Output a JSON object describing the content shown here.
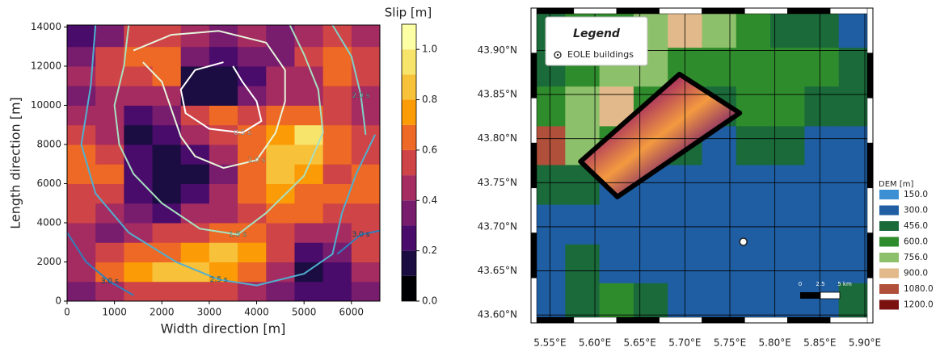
{
  "chart_data": [
    {
      "type": "contour",
      "xlabel": "Width direction [m]",
      "ylabel": "Length direction [m]",
      "xlim": [
        0,
        6600
      ],
      "ylim": [
        0,
        14100
      ],
      "xticks": [
        0,
        1000,
        2000,
        3000,
        4000,
        5000,
        6000
      ],
      "yticks": [
        0,
        2000,
        4000,
        6000,
        8000,
        10000,
        12000,
        14000
      ],
      "xbins": [
        0,
        600,
        1200,
        1800,
        2400,
        3000,
        3600,
        4200,
        4800,
        5400,
        6000,
        6600
      ],
      "ybins": [
        0,
        1000,
        2000,
        3000,
        4000,
        5000,
        6000,
        7000,
        8000,
        9000,
        10000,
        11000,
        12000,
        13000,
        14100
      ],
      "z": [
        [
          0.3,
          0.4,
          0.5,
          0.5,
          0.5,
          0.5,
          0.4,
          0.3,
          0.2,
          0.2,
          0.3
        ],
        [
          0.4,
          0.6,
          0.7,
          0.8,
          0.8,
          0.7,
          0.6,
          0.4,
          0.1,
          0.2,
          0.4
        ],
        [
          0.4,
          0.5,
          0.6,
          0.6,
          0.7,
          0.8,
          0.7,
          0.5,
          0.2,
          0.3,
          0.5
        ],
        [
          0.4,
          0.3,
          0.4,
          0.5,
          0.5,
          0.6,
          0.6,
          0.5,
          0.4,
          0.4,
          0.5
        ],
        [
          0.5,
          0.4,
          0.3,
          0.2,
          0.4,
          0.4,
          0.5,
          0.6,
          0.6,
          0.5,
          0.5
        ],
        [
          0.5,
          0.5,
          0.2,
          0.1,
          0.2,
          0.4,
          0.6,
          0.7,
          0.6,
          0.6,
          0.6
        ],
        [
          0.6,
          0.6,
          0.2,
          0.1,
          0.1,
          0.3,
          0.6,
          0.8,
          0.7,
          0.5,
          0.6
        ],
        [
          0.6,
          0.5,
          0.2,
          0.1,
          0.2,
          0.4,
          0.6,
          0.8,
          0.8,
          0.6,
          0.5
        ],
        [
          0.5,
          0.4,
          0.1,
          0.2,
          0.4,
          0.5,
          0.6,
          0.7,
          0.9,
          0.6,
          0.5
        ],
        [
          0.4,
          0.4,
          0.2,
          0.3,
          0.5,
          0.6,
          0.5,
          0.6,
          0.6,
          0.5,
          0.4
        ],
        [
          0.3,
          0.4,
          0.4,
          0.4,
          0.1,
          0.1,
          0.3,
          0.4,
          0.4,
          0.5,
          0.4
        ],
        [
          0.4,
          0.5,
          0.5,
          0.6,
          0.1,
          0.1,
          0.2,
          0.4,
          0.4,
          0.6,
          0.5
        ],
        [
          0.3,
          0.5,
          0.6,
          0.6,
          0.3,
          0.2,
          0.3,
          0.3,
          0.5,
          0.6,
          0.5
        ],
        [
          0.2,
          0.3,
          0.5,
          0.5,
          0.4,
          0.3,
          0.4,
          0.3,
          0.4,
          0.5,
          0.4
        ]
      ],
      "colorbar_title": "Slip [m]",
      "levels": [
        0,
        0.1,
        0.2,
        0.3,
        0.4,
        0.5,
        0.6,
        0.7,
        0.8,
        0.9,
        1.0,
        1.1
      ],
      "colors": [
        "#000004",
        "#1b0c41",
        "#4a0c6b",
        "#781c6d",
        "#a52c60",
        "#cf4446",
        "#ed6925",
        "#fb9b06",
        "#f7c13a",
        "#f7e46a",
        "#fcffa4"
      ],
      "colorbar_ticks": [
        {
          "value": 0,
          "label": "0.0"
        },
        {
          "value": 0.2,
          "label": "0.2"
        },
        {
          "value": 0.4,
          "label": "0.4"
        },
        {
          "value": 0.6,
          "label": "0.6"
        },
        {
          "value": 0.8,
          "label": "0.8"
        },
        {
          "value": 1.0,
          "label": "1.0"
        }
      ],
      "contours": [
        {
          "name": "0.5 s",
          "color": "#ffffff",
          "x": [
            3300,
            2700,
            2400,
            2500,
            3000,
            3700,
            4100,
            4000,
            3700,
            3500
          ],
          "y": [
            12200,
            11800,
            10800,
            9600,
            8800,
            8600,
            9200,
            10200,
            11200,
            12000
          ]
        },
        {
          "name": "1.0 s",
          "color": "#e6f5dc",
          "x": [
            1400,
            2200,
            3200,
            4200,
            4600,
            4600,
            4400,
            4000,
            3300,
            2700,
            2400,
            2200,
            2000,
            1600
          ],
          "y": [
            12800,
            13600,
            13800,
            13200,
            11800,
            10200,
            8600,
            7200,
            6800,
            7400,
            8400,
            9800,
            11200,
            12200
          ]
        },
        {
          "name": "1.5 s",
          "color": "#a8e0c0",
          "x": [
            1300,
            1200,
            1000,
            1100,
            1400,
            2000,
            2800,
            3600,
            4200,
            5000,
            5400,
            5300,
            5000,
            4700
          ],
          "y": [
            14100,
            12000,
            10000,
            8000,
            6500,
            5000,
            3700,
            3400,
            4500,
            6400,
            8600,
            10800,
            12600,
            14100
          ]
        },
        {
          "name": "2.0 s",
          "color": "#80d0c8",
          "x": [
            5600,
            6000,
            6200,
            6300
          ],
          "y": [
            14100,
            12500,
            10500,
            8500
          ]
        },
        {
          "name": "2.5 s",
          "color": "#50b0d0",
          "x": [
            600,
            500,
            300,
            600,
            1300,
            2300,
            3200,
            4000,
            5000,
            5600,
            5800,
            6100,
            6500
          ],
          "y": [
            14100,
            11000,
            8000,
            5500,
            3500,
            2000,
            1100,
            800,
            1400,
            2400,
            4500,
            6500,
            8500
          ]
        },
        {
          "name": "3.0 s",
          "color": "#3080c0",
          "x": [
            0,
            400,
            900,
            1400
          ],
          "y": [
            3500,
            2000,
            1000,
            300
          ]
        },
        {
          "name": "3.0 s",
          "color": "#3080c0",
          "x": [
            5700,
            6200,
            6600
          ],
          "y": [
            2400,
            3400,
            3600
          ]
        }
      ]
    },
    {
      "type": "map",
      "xlim": [
        5.529,
        5.909
      ],
      "ylim": [
        43.591,
        43.948
      ],
      "xticks": [
        {
          "value": 5.55,
          "label": "5.55°E"
        },
        {
          "value": 5.6,
          "label": "5.60°E"
        },
        {
          "value": 5.65,
          "label": "5.65°E"
        },
        {
          "value": 5.7,
          "label": "5.70°E"
        },
        {
          "value": 5.75,
          "label": "5.75°E"
        },
        {
          "value": 5.8,
          "label": "5.80°E"
        },
        {
          "value": 5.85,
          "label": "5.85°E"
        },
        {
          "value": 5.9,
          "label": "5.90°E"
        }
      ],
      "yticks": [
        {
          "value": 43.6,
          "label": "43.60°N"
        },
        {
          "value": 43.65,
          "label": "43.65°N"
        },
        {
          "value": 43.7,
          "label": "43.70°N"
        },
        {
          "value": 43.75,
          "label": "43.75°N"
        },
        {
          "value": 43.8,
          "label": "43.80°N"
        },
        {
          "value": 43.85,
          "label": "43.85°N"
        },
        {
          "value": 43.9,
          "label": "43.90°N"
        }
      ],
      "dem_lon_bins": [
        5.529,
        5.567,
        5.605,
        5.643,
        5.681,
        5.719,
        5.757,
        5.795,
        5.833,
        5.871,
        5.909
      ],
      "dem_lat_bins": [
        43.948,
        43.903,
        43.859,
        43.814,
        43.77,
        43.725,
        43.68,
        43.636,
        43.591
      ],
      "dem": [
        [
          450,
          500,
          600,
          700,
          900,
          700,
          500,
          450,
          400,
          300
        ],
        [
          450,
          550,
          650,
          700,
          600,
          500,
          500,
          600,
          500,
          400
        ],
        [
          600,
          750,
          800,
          600,
          450,
          400,
          500,
          500,
          450,
          350
        ],
        [
          1080,
          750,
          600,
          450,
          350,
          300,
          350,
          350,
          300,
          300
        ],
        [
          400,
          350,
          300,
          250,
          250,
          250,
          250,
          300,
          300,
          300
        ],
        [
          300,
          250,
          200,
          200,
          200,
          200,
          200,
          200,
          200,
          250
        ],
        [
          300,
          350,
          300,
          250,
          200,
          200,
          200,
          250,
          300,
          300
        ],
        [
          300,
          450,
          500,
          400,
          300,
          250,
          200,
          200,
          300,
          350
        ]
      ],
      "dem_title": "DEM [m]",
      "dem_levels": [
        {
          "value": 150,
          "label": "150.0"
        },
        {
          "value": 300,
          "label": "300.0"
        },
        {
          "value": 456,
          "label": "456.0"
        },
        {
          "value": 600,
          "label": "600.0"
        },
        {
          "value": 756,
          "label": "756.0"
        },
        {
          "value": 900,
          "label": "900.0"
        },
        {
          "value": 1080,
          "label": "1080.0"
        },
        {
          "value": 1200,
          "label": "1200.0"
        }
      ],
      "dem_colors": [
        "#3c8fd2",
        "#1f5ea2",
        "#1a6a3a",
        "#2f8c2c",
        "#8cc06a",
        "#e2b98a",
        "#b0503a",
        "#7a1010"
      ],
      "fault_outline": {
        "lon": [
          5.584,
          5.694,
          5.761,
          5.625
        ],
        "lat": [
          43.774,
          43.873,
          43.829,
          43.734
        ]
      },
      "buildings": {
        "lon": [
          5.765
        ],
        "lat": [
          43.683
        ]
      },
      "legend_title": "Legend",
      "legend_entry": "EOLE buildings",
      "legend": "upper left",
      "scale_labels": [
        "0",
        "2.5",
        "5 km"
      ]
    }
  ]
}
